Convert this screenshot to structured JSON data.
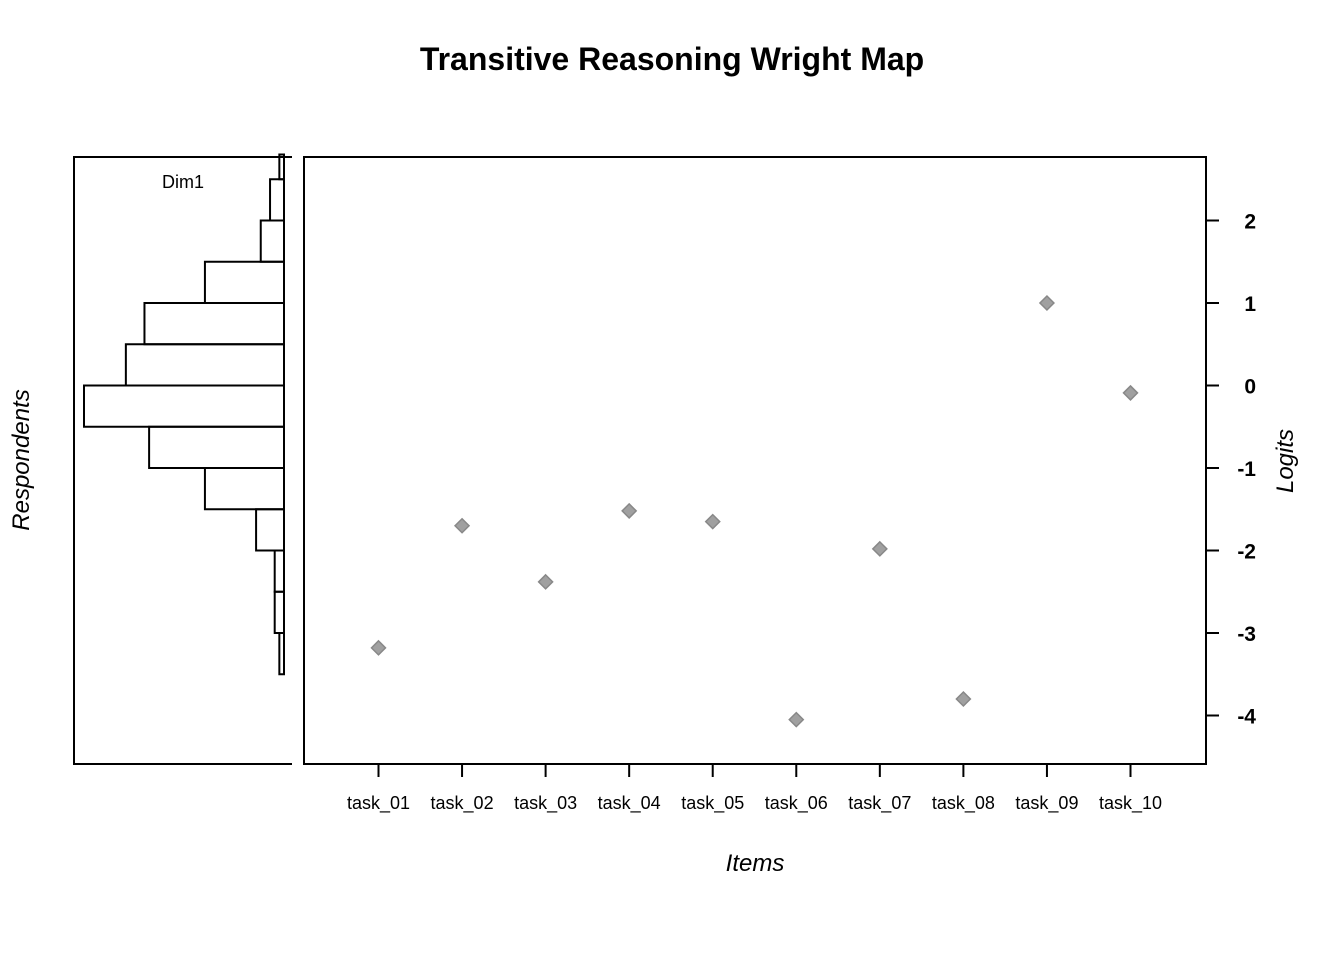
{
  "chart_data": {
    "type": "scatter",
    "title": "Transitive Reasoning Wright Map",
    "xlabel": "Items",
    "ylabel": "Logits",
    "left_ylabel": "Respondents",
    "dimension_label": "Dim1",
    "ylim": [
      -4.6,
      2.8
    ],
    "y_ticks": [
      2,
      1,
      0,
      -1,
      -2,
      -3,
      -4
    ],
    "categories": [
      "task_01",
      "task_02",
      "task_03",
      "task_04",
      "task_05",
      "task_06",
      "task_07",
      "task_08",
      "task_09",
      "task_10"
    ],
    "values": [
      -3.18,
      -1.7,
      -2.38,
      -1.52,
      -1.65,
      -4.05,
      -1.98,
      -3.8,
      1.0,
      -0.09
    ],
    "marker_color": "#a0a0a0",
    "marker_edge_color": "#888888",
    "respondent_histogram": {
      "bins": [
        {
          "upper": 2.8,
          "lower": 2.5,
          "count": 1
        },
        {
          "upper": 2.5,
          "lower": 2.0,
          "count": 3
        },
        {
          "upper": 2.0,
          "lower": 1.5,
          "count": 5
        },
        {
          "upper": 1.5,
          "lower": 1.0,
          "count": 17
        },
        {
          "upper": 1.0,
          "lower": 0.5,
          "count": 30
        },
        {
          "upper": 0.5,
          "lower": 0.0,
          "count": 34
        },
        {
          "upper": 0.0,
          "lower": -0.5,
          "count": 43
        },
        {
          "upper": -0.5,
          "lower": -1.0,
          "count": 29
        },
        {
          "upper": -1.0,
          "lower": -1.5,
          "count": 17
        },
        {
          "upper": -1.5,
          "lower": -2.0,
          "count": 6
        },
        {
          "upper": -2.0,
          "lower": -2.5,
          "count": 2
        },
        {
          "upper": -2.5,
          "lower": -3.0,
          "count": 2
        },
        {
          "upper": -3.0,
          "lower": -3.5,
          "count": 1
        }
      ]
    }
  }
}
